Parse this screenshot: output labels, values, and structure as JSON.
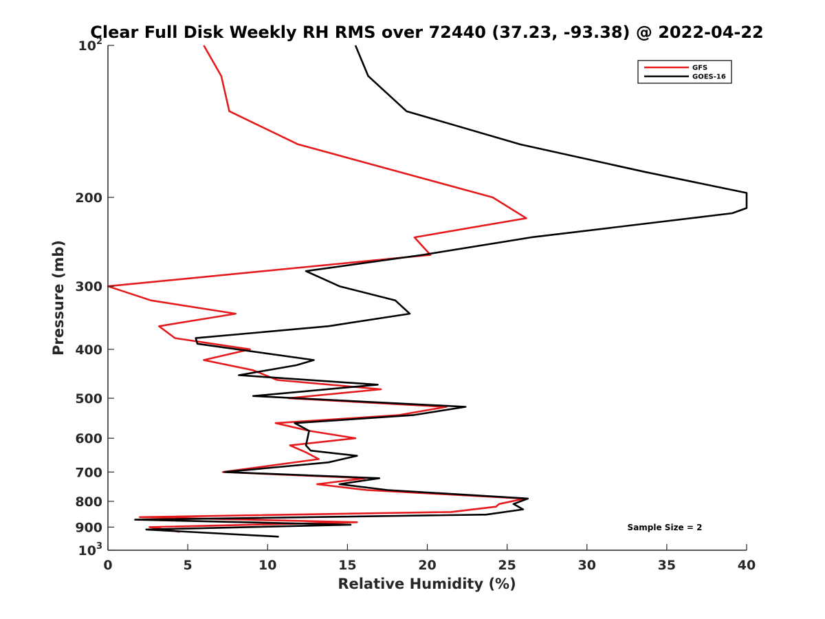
{
  "chart_data": {
    "type": "line",
    "title": "Clear Full Disk Weekly RH RMS over 72440 (37.23, -93.38) @ 2022-04-22",
    "xlabel": "Relative Humidity (%)",
    "ylabel": "Pressure (mb)",
    "xlim": [
      0,
      40
    ],
    "ylim": [
      100,
      1000
    ],
    "y_scale": "log",
    "y_reversed": true,
    "grid": false,
    "legend_position": "top-right",
    "x_ticks": [
      "0",
      "5",
      "10",
      "15",
      "20",
      "25",
      "30",
      "35",
      "40"
    ],
    "y_ticks": [
      {
        "value": 100,
        "base": "10",
        "exp": "2"
      },
      {
        "value": 200,
        "label": "200"
      },
      {
        "value": 300,
        "label": "300"
      },
      {
        "value": 400,
        "label": "400"
      },
      {
        "value": 500,
        "label": "500"
      },
      {
        "value": 600,
        "label": "600"
      },
      {
        "value": 700,
        "label": "700"
      },
      {
        "value": 800,
        "label": "800"
      },
      {
        "value": 900,
        "label": "900"
      },
      {
        "value": 1000,
        "base": "10",
        "exp": "3"
      }
    ],
    "series": [
      {
        "name": "GFS",
        "color": "#e41a1c",
        "points": [
          [
            6.0,
            100
          ],
          [
            7.1,
            115
          ],
          [
            7.6,
            135
          ],
          [
            11.9,
            157
          ],
          [
            24.1,
            200
          ],
          [
            26.2,
            220
          ],
          [
            19.2,
            240
          ],
          [
            20.2,
            260
          ],
          [
            0.0,
            300
          ],
          [
            2.7,
            320
          ],
          [
            8.0,
            340
          ],
          [
            3.2,
            360
          ],
          [
            4.2,
            380
          ],
          [
            8.9,
            400
          ],
          [
            6.0,
            420
          ],
          [
            9.1,
            440
          ],
          [
            10.6,
            460
          ],
          [
            17.1,
            480
          ],
          [
            11.3,
            500
          ],
          [
            21.2,
            520
          ],
          [
            18.2,
            540
          ],
          [
            10.5,
            560
          ],
          [
            12.6,
            580
          ],
          [
            15.5,
            600
          ],
          [
            11.4,
            620
          ],
          [
            12.4,
            640
          ],
          [
            13.2,
            660
          ],
          [
            7.2,
            700
          ],
          [
            16.1,
            720
          ],
          [
            13.1,
            740
          ],
          [
            16.2,
            760
          ],
          [
            26.1,
            790
          ],
          [
            24.5,
            810
          ],
          [
            24.3,
            820
          ],
          [
            21.5,
            840
          ],
          [
            2.0,
            860
          ],
          [
            15.6,
            880
          ],
          [
            2.6,
            900
          ],
          [
            4.5,
            920
          ]
        ]
      },
      {
        "name": "GOES-16",
        "color": "#000000",
        "points": [
          [
            15.5,
            100
          ],
          [
            16.3,
            115
          ],
          [
            18.7,
            135
          ],
          [
            25.8,
            157
          ],
          [
            33.6,
            178
          ],
          [
            40.0,
            196
          ],
          [
            40.0,
            210
          ],
          [
            39.1,
            215
          ],
          [
            26.5,
            240
          ],
          [
            19.7,
            260
          ],
          [
            12.4,
            280
          ],
          [
            14.5,
            300
          ],
          [
            18.0,
            320
          ],
          [
            18.9,
            340
          ],
          [
            13.8,
            360
          ],
          [
            5.5,
            380
          ],
          [
            5.6,
            390
          ],
          [
            12.9,
            420
          ],
          [
            11.8,
            430
          ],
          [
            8.2,
            450
          ],
          [
            16.9,
            470
          ],
          [
            9.1,
            495
          ],
          [
            22.4,
            520
          ],
          [
            19.1,
            540
          ],
          [
            11.7,
            560
          ],
          [
            12.6,
            580
          ],
          [
            12.5,
            600
          ],
          [
            12.4,
            620
          ],
          [
            12.7,
            635
          ],
          [
            15.6,
            650
          ],
          [
            13.8,
            670
          ],
          [
            7.3,
            700
          ],
          [
            17.0,
            720
          ],
          [
            14.5,
            740
          ],
          [
            17.5,
            760
          ],
          [
            26.3,
            790
          ],
          [
            25.4,
            810
          ],
          [
            26.0,
            830
          ],
          [
            23.7,
            850
          ],
          [
            1.7,
            870
          ],
          [
            15.2,
            890
          ],
          [
            2.4,
            910
          ],
          [
            10.7,
            940
          ]
        ]
      }
    ],
    "annotation": "Sample Size = 2"
  }
}
